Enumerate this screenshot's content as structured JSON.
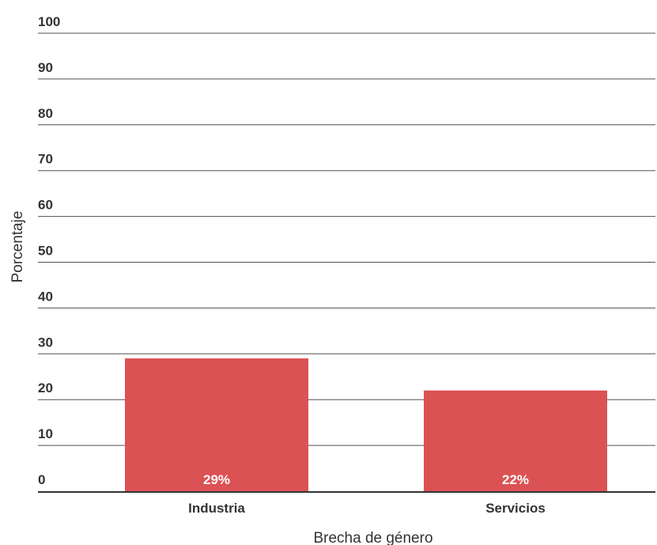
{
  "chart_data": {
    "type": "bar",
    "categories": [
      "Industria",
      "Servicios"
    ],
    "values": [
      29,
      22
    ],
    "data_labels": [
      "29%",
      "22%"
    ],
    "xlabel": "Brecha de género",
    "ylabel": "Porcentaje",
    "ylim": [
      0,
      100
    ],
    "yticks": [
      0,
      10,
      20,
      30,
      40,
      50,
      60,
      70,
      80,
      90,
      100
    ],
    "ytick_labels": [
      "0",
      "10",
      "20",
      "30",
      "40",
      "50",
      "60",
      "70",
      "80",
      "90",
      "100"
    ],
    "grid": true,
    "legend": "none",
    "bar_color": "#db5254",
    "grid_color": "#333333"
  }
}
